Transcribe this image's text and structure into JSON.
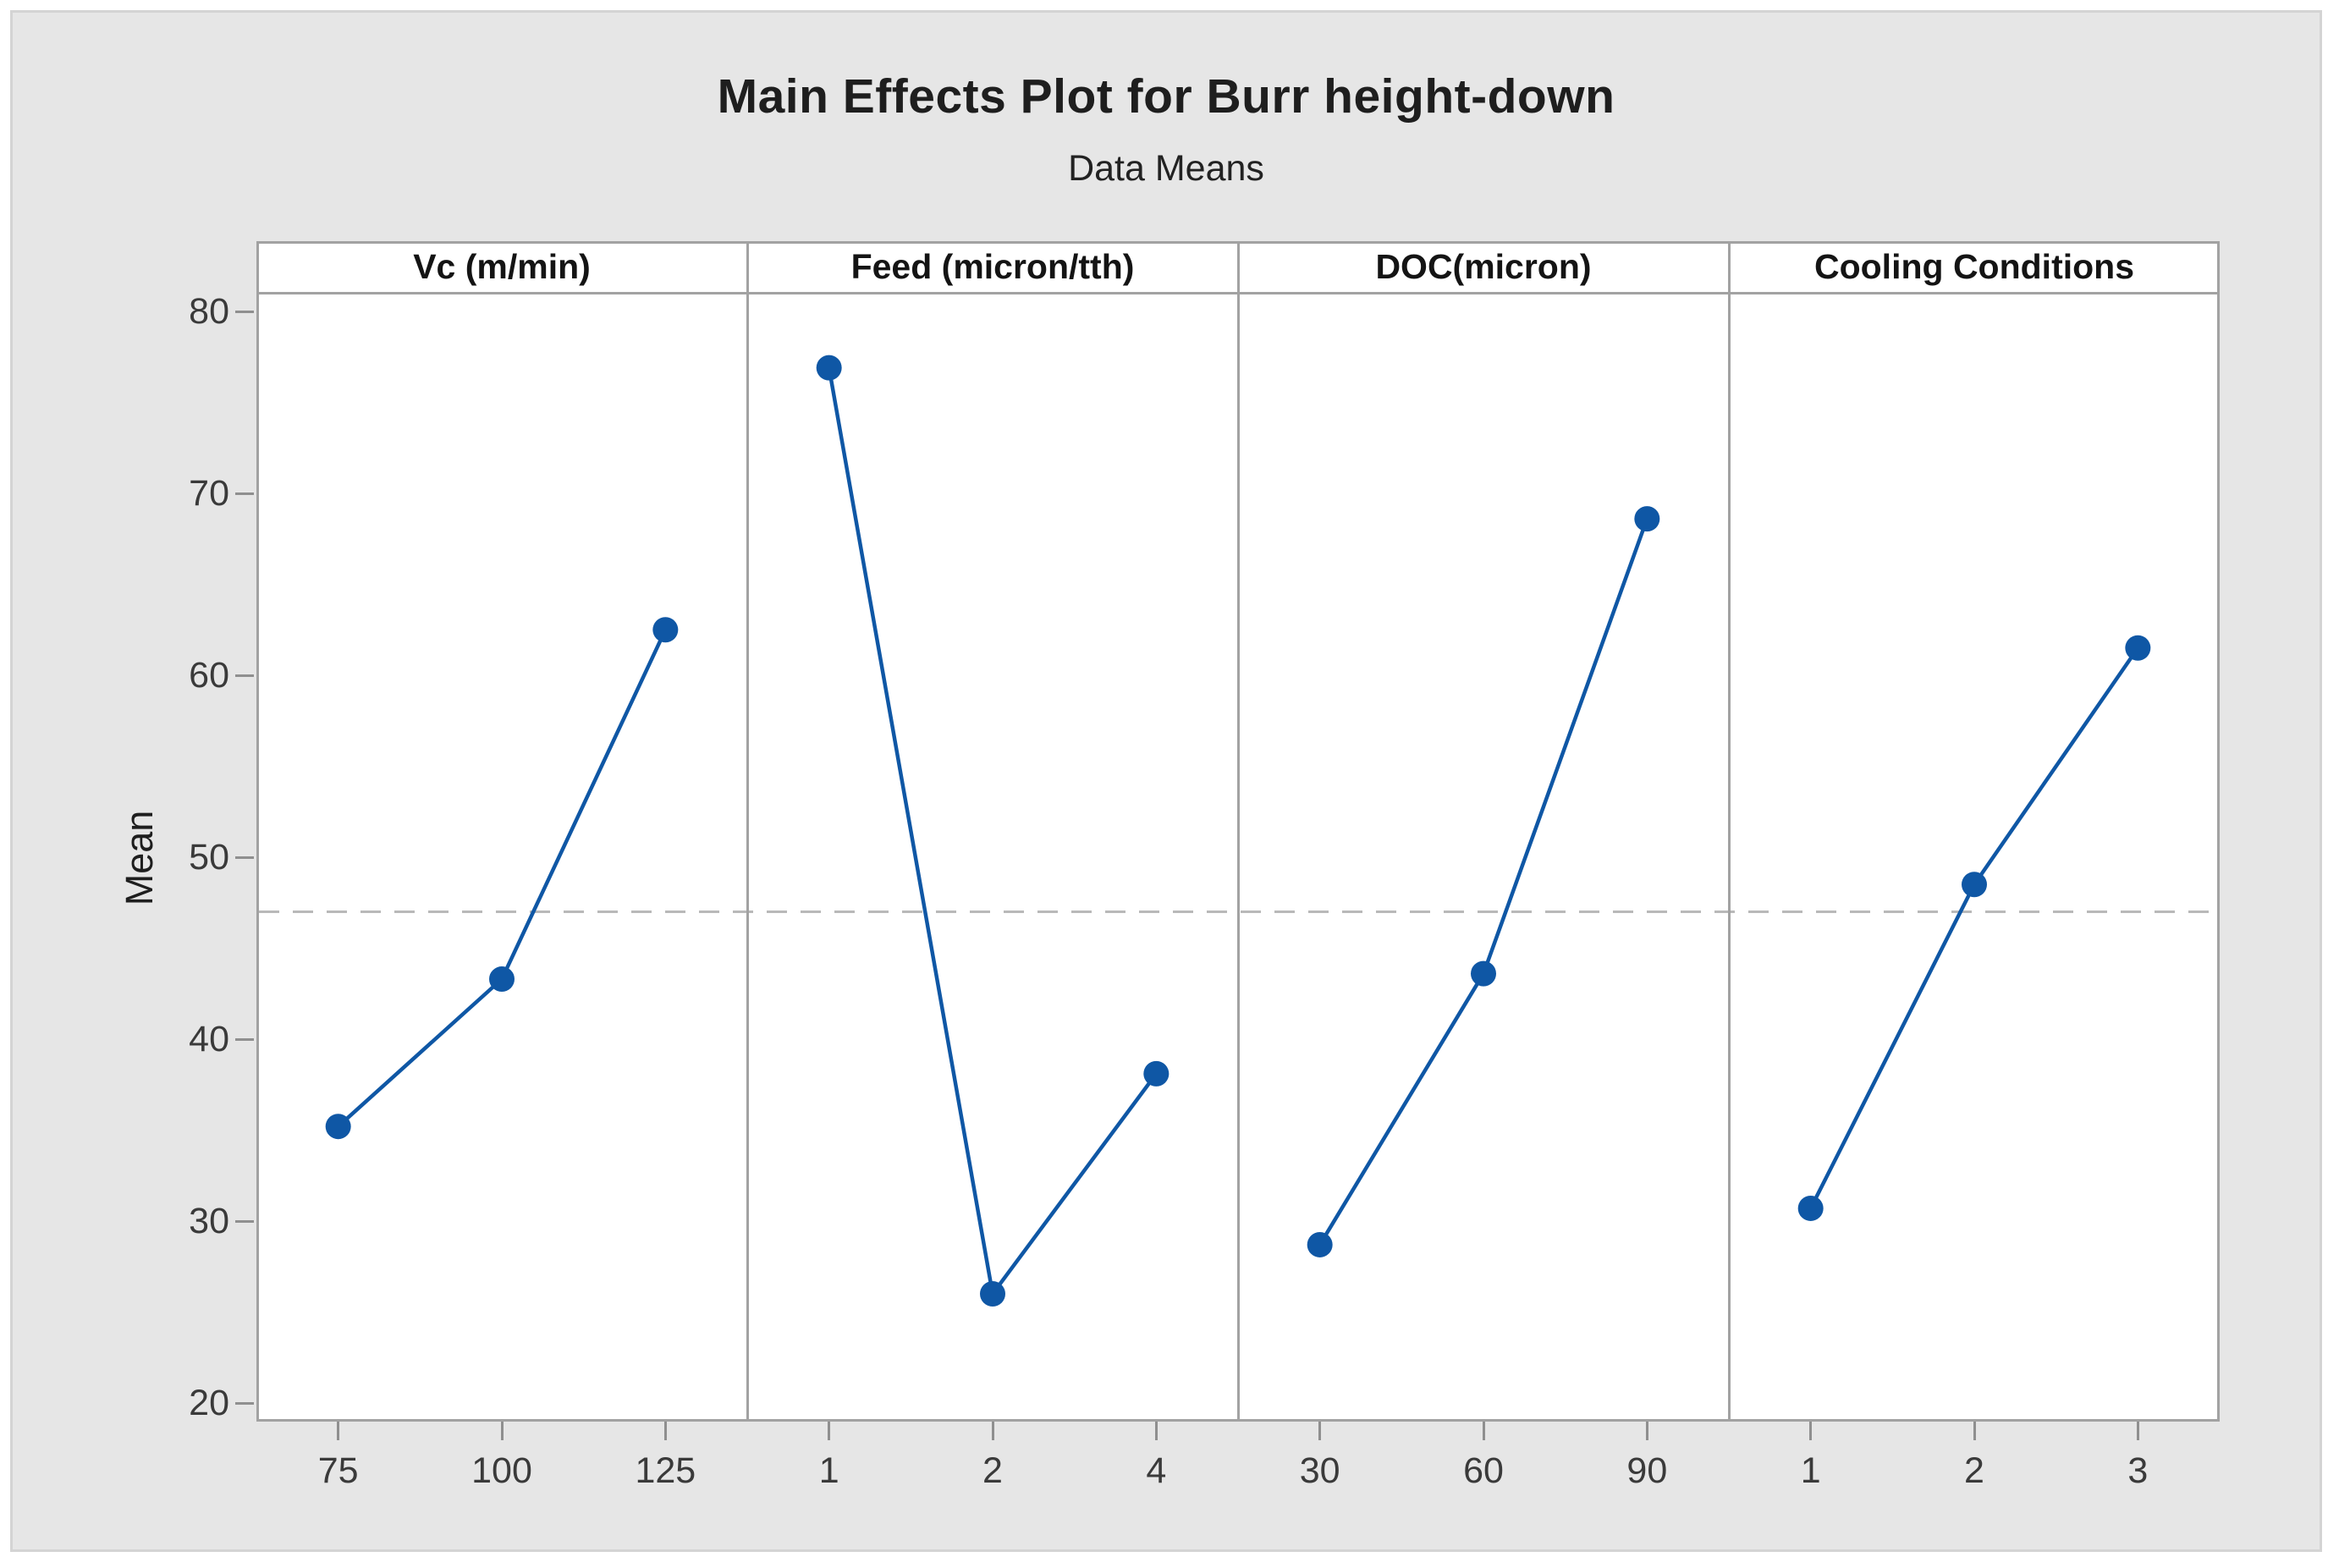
{
  "page": {
    "title": "Main Effects Plot for Burr height-down",
    "subtitle": "Data Means",
    "ylabel": "Mean"
  },
  "chart_data": {
    "type": "line",
    "title": "Main Effects Plot for Burr height-down",
    "subtitle": "Data Means",
    "ylabel": "Mean",
    "ylim": [
      19,
      81
    ],
    "y_ticks": [
      20,
      30,
      40,
      50,
      60,
      70,
      80
    ],
    "grid": false,
    "legend": "none",
    "reference_line_overall_mean": 47,
    "panels": [
      {
        "label": "Vc (m/min)",
        "categories": [
          "75",
          "100",
          "125"
        ],
        "values": [
          35.2,
          43.3,
          62.5
        ]
      },
      {
        "label": "Feed (micron/tth)",
        "categories": [
          "1",
          "2",
          "4"
        ],
        "values": [
          76.9,
          26.0,
          38.1
        ]
      },
      {
        "label": "DOC(micron)",
        "categories": [
          "30",
          "60",
          "90"
        ],
        "values": [
          28.7,
          43.6,
          68.6
        ]
      },
      {
        "label": "Cooling Conditions",
        "categories": [
          "1",
          "2",
          "3"
        ],
        "values": [
          30.7,
          48.5,
          61.5
        ]
      }
    ],
    "colors": {
      "series": "#0F57A5",
      "reference_line": "#b9b9b9",
      "axis": "#a2a2a2",
      "panel_background": "#ffffff",
      "canvas_background": "#e6e6e6",
      "text": "#1e1e1e"
    }
  }
}
